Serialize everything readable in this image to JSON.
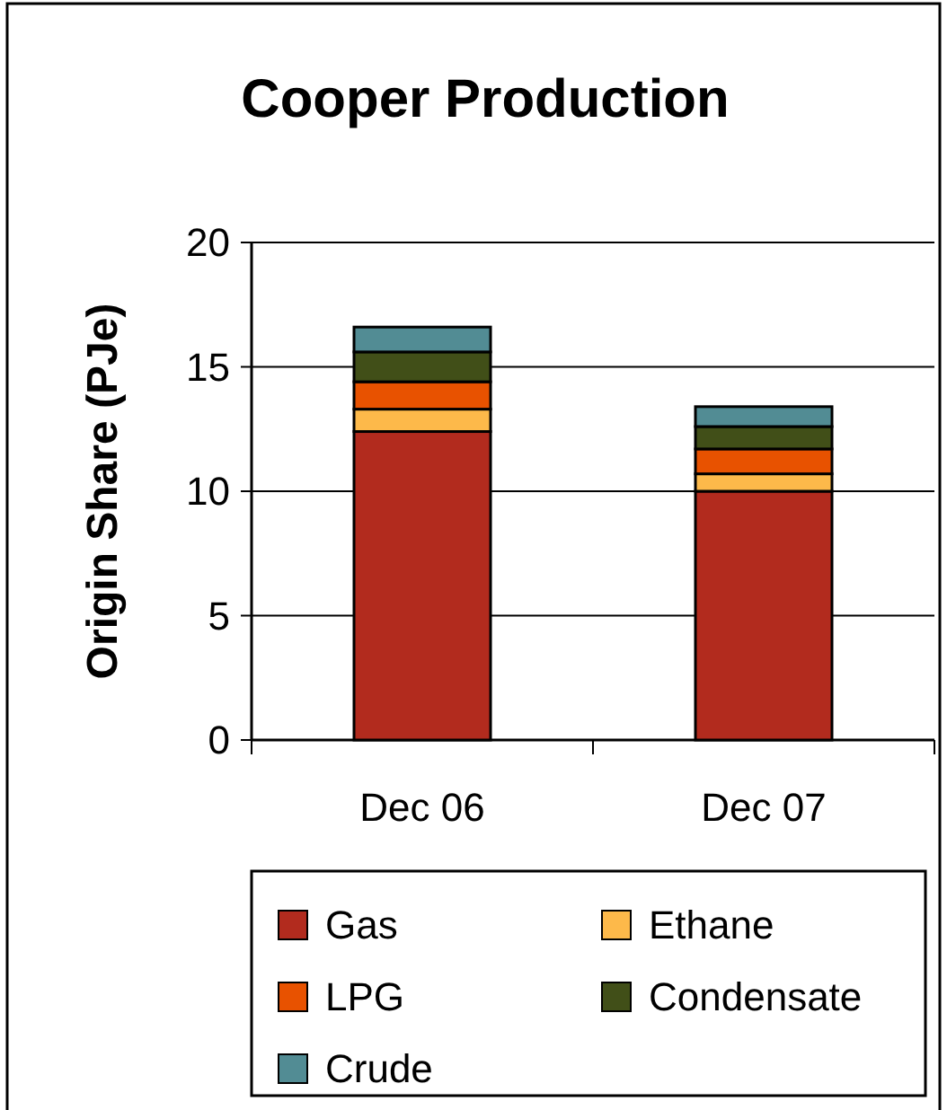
{
  "chart_data": {
    "type": "bar",
    "title": "Cooper Production",
    "ylabel": "Origin Share (PJe)",
    "categories": [
      "Dec 06",
      "Dec 07"
    ],
    "stacked": true,
    "series": [
      {
        "name": "Gas",
        "color": "#b22b1e",
        "values": [
          12.4,
          10.0
        ]
      },
      {
        "name": "Ethane",
        "color": "#fdb94a",
        "values": [
          0.9,
          0.7
        ]
      },
      {
        "name": "LPG",
        "color": "#e85200",
        "values": [
          1.1,
          1.0
        ]
      },
      {
        "name": "Condensate",
        "color": "#414f18",
        "values": [
          1.2,
          0.9
        ]
      },
      {
        "name": "Crude",
        "color": "#528c94",
        "values": [
          1.0,
          0.8
        ]
      }
    ],
    "ylim": [
      0,
      20
    ],
    "yticks": [
      0,
      5,
      10,
      15,
      20
    ],
    "grid": "y",
    "legend": "bottom"
  }
}
